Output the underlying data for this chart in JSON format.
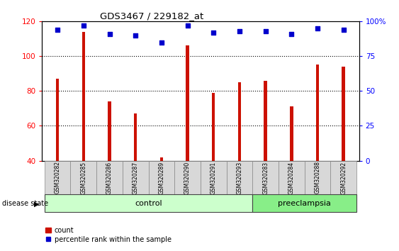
{
  "title": "GDS3467 / 229182_at",
  "samples": [
    "GSM320282",
    "GSM320285",
    "GSM320286",
    "GSM320287",
    "GSM320289",
    "GSM320290",
    "GSM320291",
    "GSM320293",
    "GSM320283",
    "GSM320284",
    "GSM320288",
    "GSM320292"
  ],
  "counts": [
    87,
    114,
    74,
    67,
    42,
    106,
    79,
    85,
    86,
    71,
    95,
    94
  ],
  "percentiles": [
    94,
    97,
    91,
    90,
    85,
    97,
    92,
    93,
    93,
    91,
    95,
    94
  ],
  "groups": [
    "control",
    "control",
    "control",
    "control",
    "control",
    "control",
    "control",
    "control",
    "preeclampsia",
    "preeclampsia",
    "preeclampsia",
    "preeclampsia"
  ],
  "bar_color": "#cc1100",
  "dot_color": "#0000cc",
  "ylim_left": [
    40,
    120
  ],
  "ylim_right": [
    0,
    100
  ],
  "yticks_left": [
    40,
    60,
    80,
    100,
    120
  ],
  "yticks_right": [
    0,
    25,
    50,
    75,
    100
  ],
  "ytick_labels_right": [
    "0",
    "25",
    "50",
    "75",
    "100%"
  ],
  "legend_count_label": "count",
  "legend_pct_label": "percentile rank within the sample",
  "disease_state_label": "disease state",
  "plot_bg_color": "#ffffff",
  "bar_width": 0.12,
  "group_colors": {
    "control": "#ccffcc",
    "preeclampsia": "#88ee88"
  },
  "group_order": [
    "control",
    "preeclampsia"
  ]
}
